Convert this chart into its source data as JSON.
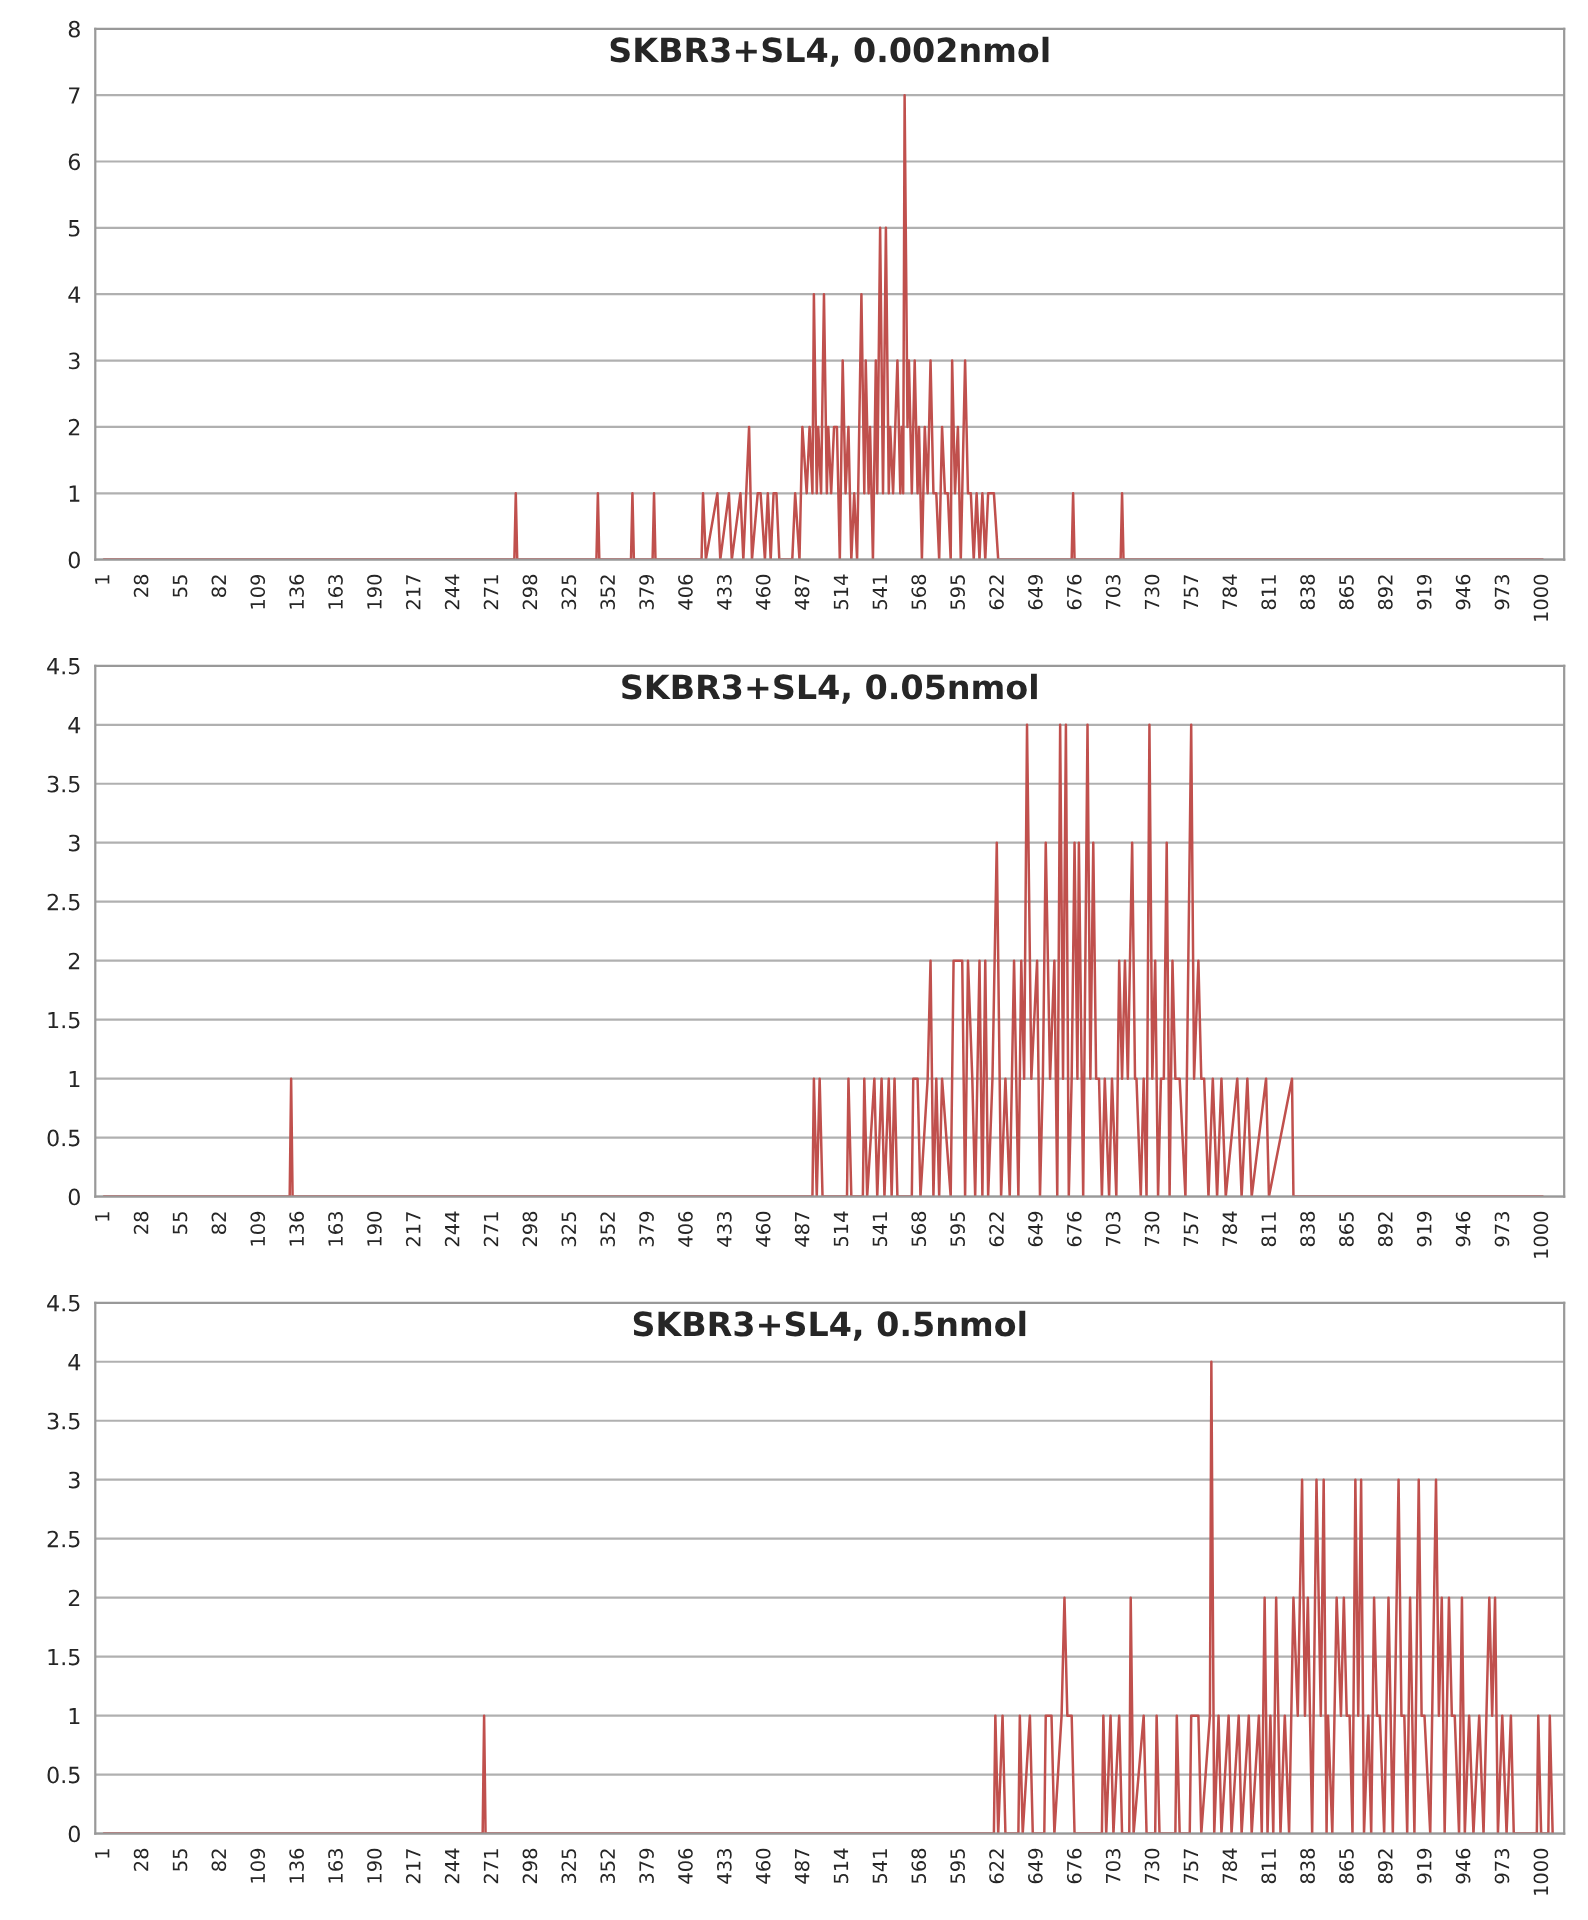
{
  "chart_data": [
    {
      "type": "line",
      "title": "SKBR3+SL4, 0.002nmol",
      "xlim": [
        -5,
        1015
      ],
      "ylim": [
        0,
        8
      ],
      "yticks": [
        0,
        1,
        2,
        3,
        4,
        5,
        6,
        7,
        8
      ],
      "xticks": [
        1,
        28,
        55,
        82,
        109,
        136,
        163,
        190,
        217,
        244,
        271,
        298,
        325,
        352,
        379,
        406,
        433,
        460,
        487,
        514,
        541,
        568,
        595,
        622,
        649,
        676,
        703,
        730,
        757,
        784,
        811,
        838,
        865,
        892,
        919,
        946,
        973,
        1000
      ],
      "grid": "y",
      "marker": "none",
      "line_style": "solid",
      "series": [
        {
          "color": "#c0504d",
          "x": [
            1,
            286,
            287,
            288,
            343,
            344,
            345,
            367,
            368,
            369,
            382,
            383,
            384,
            416,
            417,
            419,
            427,
            429,
            435,
            437,
            443,
            445,
            449,
            451,
            455,
            457,
            460,
            462,
            464,
            466,
            468,
            470,
            479,
            481,
            484,
            486,
            489,
            491,
            493,
            494,
            496,
            497,
            499,
            501,
            503,
            504,
            506,
            508,
            510,
            512,
            514,
            516,
            518,
            520,
            522,
            524,
            527,
            529,
            530,
            532,
            533,
            535,
            537,
            538,
            540,
            542,
            544,
            546,
            547,
            549,
            552,
            554,
            555,
            556,
            557,
            559,
            560,
            562,
            564,
            566,
            567,
            569,
            571,
            573,
            575,
            577,
            579,
            581,
            583,
            585,
            587,
            589,
            590,
            592,
            594,
            596,
            599,
            601,
            603,
            605,
            607,
            609,
            611,
            613,
            615,
            617,
            619,
            622,
            673,
            674,
            675,
            707,
            708,
            709,
            1000
          ],
          "values": [
            0,
            0,
            1,
            0,
            0,
            1,
            0,
            0,
            1,
            0,
            0,
            1,
            0,
            0,
            1,
            0,
            1,
            0,
            1,
            0,
            1,
            0,
            2,
            0,
            1,
            1,
            0,
            1,
            0,
            1,
            1,
            0,
            0,
            1,
            0,
            2,
            1,
            2,
            1,
            4,
            1,
            2,
            1,
            4,
            1,
            2,
            1,
            2,
            2,
            0,
            3,
            1,
            2,
            0,
            1,
            0,
            4,
            1,
            3,
            1,
            2,
            0,
            3,
            1,
            5,
            1,
            5,
            1,
            2,
            1,
            3,
            1,
            2,
            1,
            7,
            2,
            3,
            1,
            3,
            1,
            2,
            0,
            2,
            1,
            3,
            1,
            1,
            0,
            2,
            1,
            1,
            0,
            3,
            1,
            2,
            0,
            3,
            1,
            1,
            0,
            1,
            0,
            1,
            0,
            1,
            1,
            1,
            0,
            0,
            1,
            0,
            0,
            1,
            0,
            0
          ]
        }
      ]
    },
    {
      "type": "line",
      "title": "SKBR3+SL4, 0.05nmol",
      "xlim": [
        -5,
        1015
      ],
      "ylim": [
        0,
        4.5
      ],
      "yticks": [
        0,
        0.5,
        1,
        1.5,
        2,
        2.5,
        3,
        3.5,
        4,
        4.5
      ],
      "xticks": [
        1,
        28,
        55,
        82,
        109,
        136,
        163,
        190,
        217,
        244,
        271,
        298,
        325,
        352,
        379,
        406,
        433,
        460,
        487,
        514,
        541,
        568,
        595,
        622,
        649,
        676,
        703,
        730,
        757,
        784,
        811,
        838,
        865,
        892,
        919,
        946,
        973,
        1000
      ],
      "grid": "y",
      "marker": "none",
      "line_style": "solid",
      "series": [
        {
          "color": "#c0504d",
          "x": [
            1,
            130,
            131,
            132,
            493,
            494,
            496,
            498,
            500,
            517,
            518,
            520,
            528,
            529,
            531,
            536,
            538,
            541,
            543,
            546,
            548,
            550,
            552,
            562,
            563,
            566,
            568,
            573,
            575,
            577,
            579,
            581,
            583,
            589,
            591,
            597,
            599,
            601,
            604,
            606,
            609,
            611,
            613,
            615,
            618,
            621,
            624,
            627,
            630,
            633,
            636,
            638,
            640,
            642,
            645,
            649,
            651,
            653,
            655,
            658,
            661,
            663,
            665,
            667,
            669,
            671,
            673,
            675,
            677,
            678,
            681,
            684,
            686,
            688,
            690,
            692,
            694,
            696,
            699,
            701,
            704,
            706,
            708,
            710,
            712,
            715,
            717,
            718,
            721,
            723,
            725,
            727,
            729,
            731,
            733,
            735,
            737,
            739,
            741,
            743,
            745,
            748,
            752,
            756,
            758,
            761,
            763,
            765,
            768,
            771,
            774,
            777,
            780,
            788,
            791,
            795,
            798,
            808,
            810,
            826,
            827,
            1000
          ],
          "values": [
            0,
            0,
            1,
            0,
            0,
            1,
            0,
            1,
            0,
            0,
            1,
            0,
            0,
            1,
            0,
            1,
            0,
            1,
            0,
            1,
            0,
            1,
            0,
            0,
            1,
            1,
            0,
            1,
            2,
            0,
            1,
            0,
            1,
            0,
            2,
            2,
            0,
            2,
            1,
            0,
            2,
            0,
            2,
            0,
            1,
            3,
            0,
            1,
            0,
            2,
            0,
            2,
            1,
            4,
            1,
            2,
            0,
            1,
            3,
            1,
            2,
            0,
            4,
            1,
            4,
            0,
            1,
            3,
            1,
            3,
            0,
            4,
            1,
            3,
            1,
            1,
            0,
            1,
            0,
            1,
            0,
            2,
            1,
            2,
            1,
            3,
            1,
            1,
            0,
            1,
            0,
            4,
            1,
            2,
            0,
            1,
            1,
            3,
            0,
            2,
            1,
            1,
            0,
            4,
            1,
            2,
            1,
            1,
            0,
            1,
            0,
            1,
            0,
            1,
            0,
            1,
            0,
            1,
            0,
            1,
            0,
            0
          ]
        }
      ]
    },
    {
      "type": "line",
      "title": "SKBR3+SL4, 0.5nmol",
      "xlim": [
        -5,
        1015
      ],
      "ylim": [
        0,
        4.5
      ],
      "yticks": [
        0,
        0.5,
        1,
        1.5,
        2,
        2.5,
        3,
        3.5,
        4,
        4.5
      ],
      "xticks": [
        1,
        28,
        55,
        82,
        109,
        136,
        163,
        190,
        217,
        244,
        271,
        298,
        325,
        352,
        379,
        406,
        433,
        460,
        487,
        514,
        541,
        568,
        595,
        622,
        649,
        676,
        703,
        730,
        757,
        784,
        811,
        838,
        865,
        892,
        919,
        946,
        973,
        1000
      ],
      "grid": "y",
      "marker": "none",
      "line_style": "solid",
      "series": [
        {
          "color": "#c0504d",
          "x": [
            1,
            264,
            265,
            266,
            619,
            620,
            622,
            625,
            627,
            636,
            637,
            639,
            644,
            646,
            654,
            655,
            659,
            661,
            666,
            668,
            670,
            673,
            675,
            694,
            695,
            697,
            700,
            702,
            706,
            708,
            713,
            714,
            716,
            723,
            725,
            731,
            732,
            734,
            745,
            746,
            748,
            755,
            756,
            761,
            763,
            769,
            770,
            772,
            775,
            777,
            782,
            784,
            789,
            791,
            796,
            798,
            803,
            805,
            807,
            809,
            811,
            813,
            815,
            818,
            821,
            824,
            827,
            830,
            833,
            835,
            837,
            840,
            843,
            846,
            848,
            850,
            851,
            854,
            857,
            860,
            862,
            864,
            866,
            868,
            870,
            872,
            874,
            876,
            879,
            881,
            883,
            885,
            887,
            890,
            893,
            896,
            900,
            902,
            904,
            906,
            908,
            911,
            914,
            916,
            918,
            922,
            926,
            928,
            930,
            932,
            935,
            937,
            939,
            942,
            944,
            946,
            949,
            952,
            956,
            959,
            963,
            965,
            967,
            969,
            972,
            975,
            978,
            980,
            987,
            996,
            997,
            999,
            1004,
            1005,
            1007
          ],
          "values": [
            0,
            0,
            1,
            0,
            0,
            1,
            0,
            1,
            0,
            0,
            1,
            0,
            1,
            0,
            0,
            1,
            1,
            0,
            1,
            2,
            1,
            1,
            0,
            0,
            1,
            0,
            1,
            0,
            1,
            0,
            0,
            2,
            0,
            1,
            0,
            0,
            1,
            0,
            0,
            1,
            0,
            0,
            1,
            1,
            0,
            1,
            4,
            0,
            1,
            0,
            1,
            0,
            1,
            0,
            1,
            0,
            1,
            0,
            2,
            0,
            1,
            0,
            2,
            0,
            1,
            0,
            2,
            1,
            3,
            1,
            2,
            0,
            3,
            1,
            3,
            0,
            1,
            0,
            2,
            1,
            2,
            1,
            1,
            0,
            3,
            1,
            3,
            0,
            1,
            0,
            2,
            1,
            1,
            0,
            2,
            0,
            3,
            1,
            1,
            0,
            2,
            0,
            3,
            1,
            1,
            0,
            3,
            1,
            2,
            0,
            2,
            1,
            1,
            0,
            2,
            0,
            1,
            0,
            1,
            0,
            2,
            1,
            2,
            0,
            1,
            0,
            1,
            0,
            0,
            0,
            1,
            0,
            0,
            1,
            0
          ]
        }
      ]
    }
  ]
}
